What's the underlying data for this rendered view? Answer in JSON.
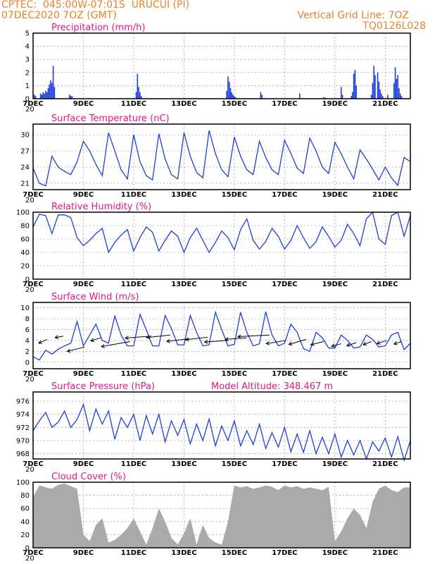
{
  "header": {
    "line1": "CPTEC:  045:00W-07:01S  URUCUI (PI)",
    "line2": "07DEC2020 7OZ (GMT)",
    "grid_note": "Vertical Grid Line: 7OZ",
    "code": "TQ0126L028"
  },
  "x_axis": {
    "ticks": [
      "7DEC",
      "9DEC",
      "11DEC",
      "13DEC",
      "15DEC",
      "17DEC",
      "19DEC",
      "21DEC"
    ],
    "tick_days": [
      0,
      2,
      4,
      6,
      8,
      10,
      12,
      14
    ],
    "day_range": [
      0,
      15
    ],
    "year_stub": "20"
  },
  "chart_data": [
    {
      "type": "bar",
      "title": "Precipitation (mm/h)",
      "ylim": [
        0,
        5
      ],
      "yticks": [
        0,
        1,
        2,
        3,
        4,
        5
      ],
      "grid": true,
      "color": "#1f3fdb",
      "x": [
        0.05,
        0.1,
        0.3,
        0.35,
        0.4,
        0.45,
        0.5,
        0.55,
        0.6,
        0.65,
        0.7,
        0.75,
        0.8,
        0.85,
        1.45,
        1.5,
        1.55,
        4.1,
        4.15,
        4.2,
        4.25,
        4.3,
        7.7,
        7.75,
        7.8,
        7.85,
        7.9,
        7.95,
        8.0,
        8.05,
        9.05,
        9.1,
        10.6,
        11.55,
        11.6,
        12.25,
        12.3,
        12.65,
        12.7,
        12.75,
        12.8,
        12.85,
        13.45,
        13.5,
        13.55,
        13.6,
        13.7,
        13.75,
        13.8,
        13.85,
        13.9,
        14.1,
        14.35,
        14.4,
        14.45,
        14.5,
        14.55,
        14.6,
        14.65
      ],
      "values": [
        0.3,
        0.2,
        0.4,
        0.3,
        0.5,
        0.4,
        0.6,
        0.5,
        0.8,
        1.1,
        1.4,
        1.2,
        2.5,
        0.9,
        0.3,
        0.2,
        0.2,
        0.5,
        1.9,
        0.9,
        0.5,
        0.2,
        0.6,
        1.7,
        1.3,
        0.8,
        0.5,
        0.3,
        0.2,
        0.1,
        0.5,
        0.3,
        0.4,
        0.1,
        0.1,
        0.9,
        0.3,
        0.2,
        0.5,
        1.9,
        2.2,
        1.0,
        0.3,
        1.2,
        2.5,
        1.8,
        2.0,
        1.3,
        0.7,
        0.4,
        0.2,
        0.3,
        1.2,
        2.4,
        1.5,
        1.8,
        0.8,
        0.4,
        0.2
      ]
    },
    {
      "type": "line",
      "title": "Surface Temperature (nC)",
      "ylim": [
        19.8,
        32
      ],
      "yticks": [
        21,
        24,
        27,
        30
      ],
      "grid": true,
      "color": "#1f3fdb",
      "x": [
        0.0,
        0.25,
        0.5,
        0.75,
        1.0,
        1.25,
        1.5,
        1.75,
        2.0,
        2.25,
        2.5,
        2.75,
        3.0,
        3.25,
        3.5,
        3.75,
        4.0,
        4.25,
        4.5,
        4.75,
        5.0,
        5.25,
        5.5,
        5.75,
        6.0,
        6.25,
        6.5,
        6.75,
        7.0,
        7.25,
        7.5,
        7.75,
        8.0,
        8.25,
        8.5,
        8.75,
        9.0,
        9.25,
        9.5,
        9.75,
        10.0,
        10.25,
        10.5,
        10.75,
        11.0,
        11.25,
        11.5,
        11.75,
        12.0,
        12.25,
        12.5,
        12.75,
        13.0,
        13.25,
        13.5,
        13.75,
        14.0,
        14.25,
        14.5,
        14.75,
        15.0
      ],
      "values": [
        23.8,
        21.0,
        20.5,
        26.0,
        24.0,
        23.2,
        22.6,
        25.0,
        28.8,
        27.0,
        24.5,
        22.4,
        30.4,
        27.0,
        23.5,
        21.8,
        30.0,
        25.0,
        22.4,
        21.6,
        30.2,
        25.5,
        22.6,
        21.8,
        30.4,
        26.0,
        23.0,
        22.0,
        30.8,
        26.5,
        23.5,
        22.2,
        29.6,
        26.0,
        23.5,
        22.6,
        28.8,
        25.8,
        23.5,
        22.6,
        29.0,
        26.5,
        23.8,
        22.8,
        29.4,
        27.0,
        24.0,
        22.8,
        28.6,
        26.5,
        24.0,
        21.8,
        27.2,
        25.5,
        23.6,
        21.6,
        24.0,
        22.0,
        20.6,
        25.8,
        25.0
      ]
    },
    {
      "type": "line",
      "title": "Relative Humidity (%)",
      "ylim": [
        0,
        100
      ],
      "yticks": [
        0,
        20,
        40,
        60,
        80,
        100
      ],
      "grid": true,
      "color": "#1f3fdb",
      "x": [
        0.0,
        0.25,
        0.5,
        0.75,
        1.0,
        1.25,
        1.5,
        1.75,
        2.0,
        2.25,
        2.5,
        2.75,
        3.0,
        3.25,
        3.5,
        3.75,
        4.0,
        4.25,
        4.5,
        4.75,
        5.0,
        5.25,
        5.5,
        5.75,
        6.0,
        6.25,
        6.5,
        6.75,
        7.0,
        7.25,
        7.5,
        7.75,
        8.0,
        8.25,
        8.5,
        8.75,
        9.0,
        9.25,
        9.5,
        9.75,
        10.0,
        10.25,
        10.5,
        10.75,
        11.0,
        11.25,
        11.5,
        11.75,
        12.0,
        12.25,
        12.5,
        12.75,
        13.0,
        13.25,
        13.5,
        13.75,
        14.0,
        14.25,
        14.5,
        14.75,
        15.0
      ],
      "values": [
        78,
        97,
        95,
        68,
        96,
        96,
        92,
        62,
        50,
        58,
        68,
        76,
        40,
        55,
        66,
        74,
        42,
        62,
        78,
        70,
        42,
        58,
        72,
        64,
        40,
        62,
        76,
        58,
        40,
        55,
        72,
        62,
        44,
        74,
        90,
        58,
        45,
        56,
        76,
        64,
        45,
        58,
        80,
        62,
        46,
        56,
        78,
        64,
        48,
        58,
        82,
        68,
        50,
        90,
        100,
        60,
        52,
        95,
        100,
        64,
        95
      ]
    },
    {
      "type": "line",
      "title": "Surface Wind (m/s)",
      "ylim": [
        -1.2,
        11
      ],
      "yticks": [
        0,
        2,
        4,
        6,
        8,
        10
      ],
      "grid": true,
      "color": "#1f3fdb",
      "x": [
        0.0,
        0.25,
        0.5,
        0.75,
        1.0,
        1.25,
        1.5,
        1.75,
        2.0,
        2.25,
        2.5,
        2.75,
        3.0,
        3.25,
        3.5,
        3.75,
        4.0,
        4.25,
        4.5,
        4.75,
        5.0,
        5.25,
        5.5,
        5.75,
        6.0,
        6.25,
        6.5,
        6.75,
        7.0,
        7.25,
        7.5,
        7.75,
        8.0,
        8.25,
        8.5,
        8.75,
        9.0,
        9.25,
        9.5,
        9.75,
        10.0,
        10.25,
        10.5,
        10.75,
        11.0,
        11.25,
        11.5,
        11.75,
        12.0,
        12.25,
        12.5,
        12.75,
        13.0,
        13.25,
        13.5,
        13.75,
        14.0,
        14.25,
        14.5,
        14.75,
        15.0
      ],
      "values": [
        1.0,
        0.4,
        2.2,
        1.5,
        2.4,
        3.0,
        3.5,
        7.5,
        3.0,
        5.0,
        7.0,
        4.0,
        3.5,
        8.5,
        5.0,
        3.0,
        3.0,
        8.8,
        6.0,
        3.0,
        3.0,
        8.6,
        6.2,
        3.2,
        3.2,
        8.6,
        5.5,
        3.0,
        3.2,
        9.2,
        6.0,
        3.0,
        3.3,
        9.2,
        5.5,
        3.0,
        3.4,
        9.3,
        5.0,
        3.0,
        3.5,
        7.0,
        5.5,
        2.5,
        2.0,
        5.5,
        4.5,
        2.6,
        2.6,
        5.0,
        4.0,
        2.6,
        2.8,
        5.0,
        4.2,
        2.8,
        3.0,
        5.0,
        5.5,
        2.3,
        3.5
      ],
      "arrows": {
        "x": [
          0.55,
          1.2,
          2.05,
          2.7,
          3.85,
          4.7,
          5.45,
          6.2,
          6.95,
          7.75,
          8.5,
          9.4,
          10.05,
          10.85,
          11.55,
          12.25,
          12.85,
          13.45,
          14.05,
          14.65
        ],
        "base": [
          4.2,
          4.8,
          2.8,
          4.5,
          3.8,
          4.8,
          5.0,
          4.3,
          4.6,
          4.0,
          4.5,
          5.0,
          4.0,
          4.2,
          3.8,
          3.4,
          3.6,
          3.8,
          4.0,
          3.8
        ],
        "u": [
          -2.6,
          -2.6,
          -5.5,
          -3.2,
          -9.0,
          -8.2,
          -7.5,
          -7.0,
          -7.0,
          -7.4,
          -6.8,
          -10.0,
          -6.2,
          -5.4,
          -4.0,
          -3.0,
          -3.0,
          -2.6,
          -3.0,
          -2.4
        ],
        "v": [
          -1.2,
          -0.5,
          -1.4,
          -1.0,
          -1.6,
          -0.6,
          -0.8,
          -0.8,
          -0.8,
          -0.5,
          -0.5,
          -0.5,
          -1.0,
          -1.6,
          -1.0,
          -0.8,
          -1.0,
          -1.0,
          -1.0,
          -0.8
        ],
        "color": "#000000"
      }
    },
    {
      "type": "line",
      "title": "Surface Pressure (hPa)",
      "subtitle": "Model Altitude: 348.467 m",
      "ylim": [
        967.2,
        977.4
      ],
      "yticks": [
        968,
        970,
        972,
        974,
        976
      ],
      "grid": true,
      "color": "#1f3fdb",
      "x": [
        0.0,
        0.25,
        0.5,
        0.75,
        1.0,
        1.25,
        1.5,
        1.75,
        2.0,
        2.25,
        2.5,
        2.75,
        3.0,
        3.25,
        3.5,
        3.75,
        4.0,
        4.25,
        4.5,
        4.75,
        5.0,
        5.25,
        5.5,
        5.75,
        6.0,
        6.25,
        6.5,
        6.75,
        7.0,
        7.25,
        7.5,
        7.75,
        8.0,
        8.25,
        8.5,
        8.75,
        9.0,
        9.25,
        9.5,
        9.75,
        10.0,
        10.25,
        10.5,
        10.75,
        11.0,
        11.25,
        11.5,
        11.75,
        12.0,
        12.25,
        12.5,
        12.75,
        13.0,
        13.25,
        13.5,
        13.75,
        14.0,
        14.25,
        14.5,
        14.75,
        15.0
      ],
      "values": [
        971.5,
        973.0,
        974.3,
        972.0,
        972.8,
        974.5,
        972.0,
        973.2,
        975.5,
        971.5,
        974.8,
        972.5,
        974.5,
        970.2,
        973.5,
        972.0,
        974.0,
        970.0,
        973.8,
        971.0,
        974.0,
        969.8,
        973.0,
        970.8,
        973.2,
        969.5,
        972.5,
        970.0,
        973.3,
        969.2,
        972.2,
        970.0,
        973.0,
        969.2,
        971.5,
        969.4,
        972.5,
        968.8,
        971.2,
        969.0,
        972.0,
        968.3,
        971.0,
        968.2,
        971.5,
        968.0,
        970.5,
        968.0,
        971.0,
        967.5,
        970.0,
        967.8,
        970.0,
        967.2,
        969.8,
        968.4,
        970.4,
        967.5,
        970.6,
        967.0,
        970.0
      ]
    },
    {
      "type": "area",
      "title": "Cloud Cover (%)",
      "ylim": [
        0,
        100
      ],
      "yticks": [
        0,
        20,
        40,
        60,
        80,
        100
      ],
      "grid": true,
      "color": "#aaaaaa",
      "x": [
        0.0,
        0.25,
        0.5,
        0.75,
        1.0,
        1.25,
        1.5,
        1.75,
        2.0,
        2.25,
        2.5,
        2.75,
        3.0,
        3.25,
        3.5,
        3.75,
        4.0,
        4.25,
        4.5,
        4.75,
        5.0,
        5.25,
        5.5,
        5.75,
        6.0,
        6.25,
        6.5,
        6.75,
        7.0,
        7.25,
        7.5,
        7.75,
        8.0,
        8.25,
        8.5,
        8.75,
        9.0,
        9.25,
        9.5,
        9.75,
        10.0,
        10.25,
        10.5,
        10.75,
        11.0,
        11.25,
        11.5,
        11.75,
        12.0,
        12.25,
        12.5,
        12.75,
        13.0,
        13.25,
        13.5,
        13.75,
        14.0,
        14.25,
        14.5,
        14.75,
        15.0
      ],
      "values": [
        78,
        95,
        92,
        90,
        96,
        98,
        94,
        90,
        20,
        10,
        35,
        45,
        8,
        12,
        20,
        30,
        45,
        25,
        5,
        30,
        60,
        40,
        15,
        5,
        22,
        45,
        5,
        35,
        15,
        8,
        5,
        40,
        95,
        92,
        94,
        90,
        92,
        95,
        93,
        88,
        95,
        92,
        94,
        90,
        92,
        90,
        88,
        93,
        10,
        25,
        45,
        60,
        50,
        30,
        70,
        90,
        95,
        88,
        85,
        92,
        92
      ]
    }
  ]
}
